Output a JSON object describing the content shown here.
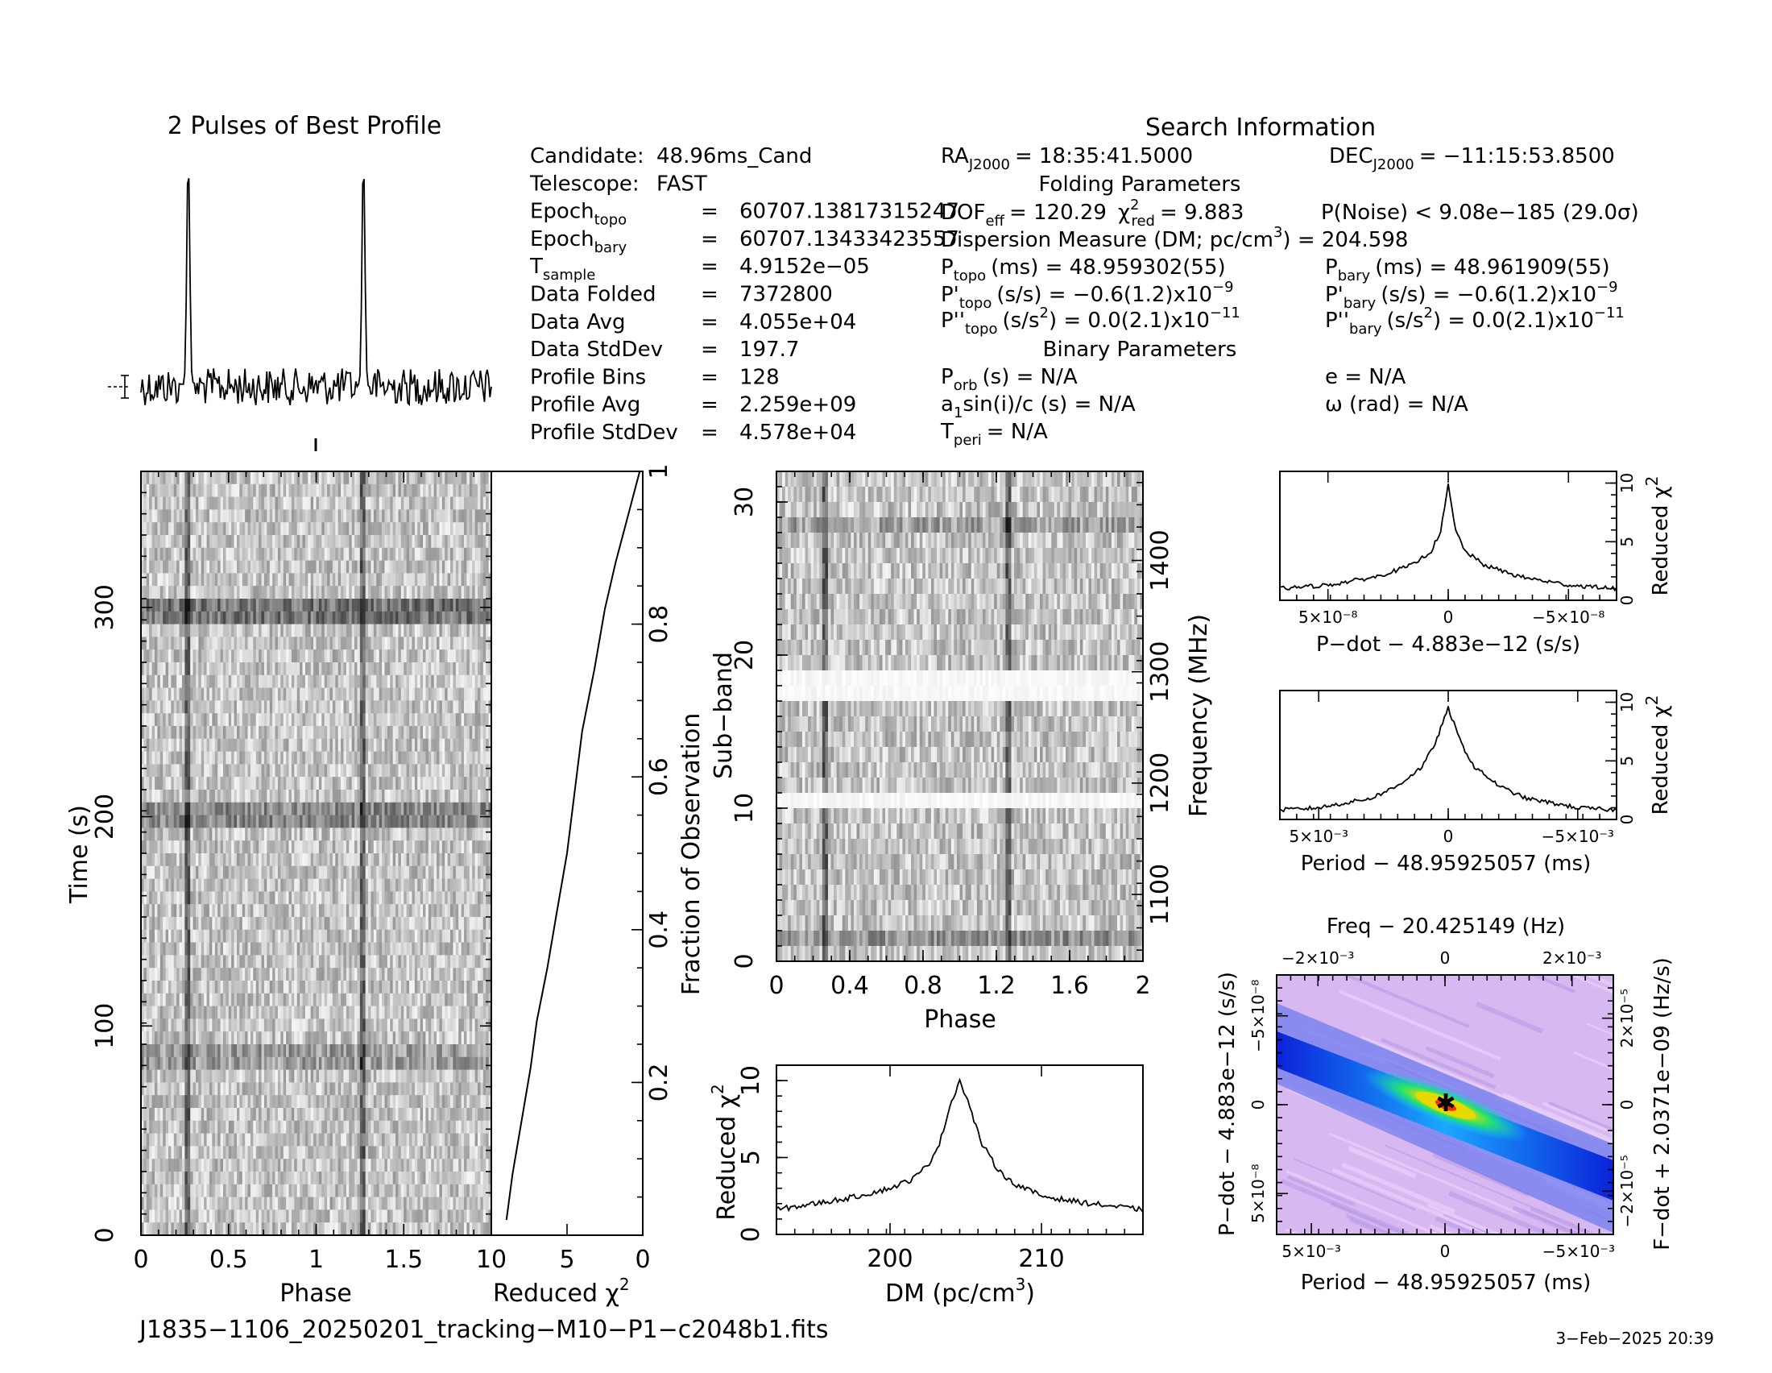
{
  "title_profile": "2 Pulses of Best Profile",
  "search_info_title": "Search Information",
  "info_col1": [
    {
      "label": "Candidate:",
      "value": "48.96ms_Cand"
    },
    {
      "label": "Telescope:",
      "value": "FAST"
    },
    {
      "label": "Epoch",
      "sub": "topo",
      "eq": "=",
      "value": "60707.13817315247"
    },
    {
      "label": "Epoch",
      "sub": "bary",
      "eq": "=",
      "value": "60707.13433423557"
    },
    {
      "label": "T",
      "sub": "sample",
      "eq": "=",
      "value": "4.9152e−05"
    },
    {
      "label": "Data Folded",
      "eq": "=",
      "value": "7372800"
    },
    {
      "label": "Data Avg",
      "eq": "=",
      "value": "4.055e+04"
    },
    {
      "label": "Data StdDev",
      "eq": "=",
      "value": "197.7"
    },
    {
      "label": "Profile Bins",
      "eq": "=",
      "value": "128"
    },
    {
      "label": "Profile Avg",
      "eq": "=",
      "value": "2.259e+09"
    },
    {
      "label": "Profile StdDev",
      "eq": "=",
      "value": "4.578e+04"
    }
  ],
  "ra": {
    "label": "RA",
    "sub": "J2000",
    "value": "= 18:35:41.5000"
  },
  "dec": {
    "label": "DEC",
    "sub": "J2000",
    "value": "= −11:15:53.8500"
  },
  "folding_title": "Folding Parameters",
  "dof": {
    "label": "DOF",
    "sub": "eff",
    "value": "= 120.29",
    "chi_label": "χ",
    "chi_sup": "2",
    "chi_sub": "red",
    "chi_value": "= 9.883"
  },
  "pnoise": "P(Noise) < 9.08e−185  (29.0σ)",
  "dm_line": {
    "prefix": "Dispersion Measure (DM; pc/cm",
    "sup": "3",
    "suffix": ") = 204.598"
  },
  "p_topo": {
    "label": "P",
    "sub": "topo",
    "value": "(ms) =  48.959302(55)"
  },
  "p_bary": {
    "label": "P",
    "sub": "bary",
    "value": "(ms) =  48.961909(55)"
  },
  "pd_topo": {
    "label": "P'",
    "sub": "topo",
    "value": "(s/s) = −0.6(1.2)x10",
    "exp": "−9"
  },
  "pd_bary": {
    "label": "P'",
    "sub": "bary",
    "value": "(s/s) = −0.6(1.2)x10",
    "exp": "−9"
  },
  "pdd_topo": {
    "label": "P''",
    "sub": "topo",
    "pre": "(s/s",
    "sup": "2",
    "value": ") = 0.0(2.1)x10",
    "exp": "−11"
  },
  "pdd_bary": {
    "label": "P''",
    "sub": "bary",
    "pre": "(s/s",
    "sup": "2",
    "value": ") = 0.0(2.1)x10",
    "exp": "−11"
  },
  "binary_title": "Binary Parameters",
  "porb": {
    "label": "P",
    "sub": "orb",
    "value": "(s) = N/A"
  },
  "asini": {
    "label": "a",
    "sub": "1",
    "value": "sin(i)/c (s) = N/A"
  },
  "tperi": {
    "label": "T",
    "sub": "peri",
    "value": "= N/A"
  },
  "ecc": "e = N/A",
  "omega": "ω (rad) = N/A",
  "filename": "J1835−1106_20250201_tracking−M10−P1−c2048b1.fits",
  "date": "3−Feb−2025 20:39",
  "chart_data": [
    {
      "type": "line",
      "name": "best-profile",
      "title": "2 Pulses of Best Profile",
      "x_label": "",
      "phase_range": [
        0,
        2
      ],
      "peaks": [
        {
          "phase": 0.27,
          "relative_height": 1.0
        },
        {
          "phase": 1.27,
          "relative_height": 1.0
        }
      ],
      "note_values": "noise baseline with two sharp pulses"
    },
    {
      "type": "heatmap",
      "name": "time-phase",
      "xlabel": "Phase",
      "ylabel": "Time (s)",
      "xlim": [
        0,
        2
      ],
      "ylim": [
        0,
        365
      ],
      "xticks": [
        "0",
        "0.5",
        "1",
        "1.5"
      ],
      "yticks": [
        "0",
        "100",
        "200",
        "300"
      ],
      "pulse_phases": [
        0.27,
        1.27
      ]
    },
    {
      "type": "line",
      "name": "time-chi2",
      "xlabel": "Reduced χ",
      "xlabel_sup": "2",
      "ylabel": "Fraction of Observation",
      "xlim": [
        10,
        0
      ],
      "ylim": [
        0,
        1
      ],
      "xticks": [
        "10",
        "5",
        "0"
      ],
      "yticks": [
        "0.2",
        "0.4",
        "0.6",
        "0.8",
        "1"
      ],
      "x": [
        1.0,
        1.4,
        2.0,
        2.6,
        3.0,
        3.7,
        4.3,
        5.0,
        5.5,
        6.0,
        6.8,
        7.5,
        8.2,
        9.0,
        9.8
      ],
      "y": [
        0.02,
        0.08,
        0.15,
        0.22,
        0.28,
        0.35,
        0.42,
        0.5,
        0.58,
        0.66,
        0.74,
        0.82,
        0.88,
        0.94,
        1.0
      ]
    },
    {
      "type": "heatmap",
      "name": "subband-phase",
      "xlabel": "Phase",
      "ylabel": "Sub−band",
      "y2label": "Frequency (MHz)",
      "xlim": [
        0,
        2
      ],
      "ylim": [
        0,
        32
      ],
      "xticks": [
        "0",
        "0.4",
        "0.8",
        "1.2",
        "1.6",
        "2"
      ],
      "yticks": [
        "0",
        "10",
        "20",
        "30"
      ],
      "y2ticks": [
        "1100",
        "1200",
        "1300",
        "1400"
      ],
      "zapped_subbands": [
        10,
        17,
        18
      ]
    },
    {
      "type": "line",
      "name": "dm-chi2",
      "xlabel": "DM (pc/cm",
      "xlabel_sup": "3",
      "xlabel_end": ")",
      "ylabel": "Reduced χ",
      "ylabel_sup": "2",
      "xlim": [
        192.5,
        216.7
      ],
      "ylim": [
        0,
        11
      ],
      "xticks": [
        "200",
        "210"
      ],
      "yticks": [
        "0",
        "5",
        "10"
      ],
      "x": [
        192.5,
        195,
        197.5,
        200,
        201.5,
        202.5,
        203.3,
        204,
        204.6,
        205.2,
        206,
        207,
        208,
        210,
        212.5,
        215,
        216.7
      ],
      "y": [
        1.6,
        2.0,
        2.4,
        3.0,
        3.6,
        4.5,
        6.0,
        8.5,
        10.0,
        8.5,
        6.0,
        4.4,
        3.4,
        2.5,
        2.1,
        1.8,
        1.6
      ]
    },
    {
      "type": "line",
      "name": "pdot-chi2",
      "xlabel": "P−dot − 4.883e−12 (s/s)",
      "ylabel": "Reduced χ",
      "ylabel_sup": "2",
      "xlim": [
        7e-08,
        -7e-08
      ],
      "ylim": [
        0,
        11
      ],
      "xticks": [
        "5×10⁻⁸",
        "0",
        "−5×10⁻⁸"
      ],
      "yticks": [
        "0",
        "5",
        "10"
      ],
      "x": [
        7e-08,
        5e-08,
        3e-08,
        1.5e-08,
        7e-09,
        3e-09,
        0,
        -3e-09,
        -7e-09,
        -1.5e-08,
        -3e-08,
        -5e-08,
        -7e-08
      ],
      "y": [
        1.0,
        1.3,
        2.0,
        3.0,
        4.2,
        6.0,
        9.8,
        6.0,
        4.2,
        3.0,
        2.0,
        1.3,
        1.0
      ]
    },
    {
      "type": "line",
      "name": "period-chi2",
      "xlabel": "Period − 48.95925057 (ms)",
      "ylabel": "Reduced χ",
      "ylabel_sup": "2",
      "xlim": [
        0.0065,
        -0.0065
      ],
      "ylim": [
        0,
        11
      ],
      "xticks": [
        "5×10⁻³",
        "0",
        "−5×10⁻³"
      ],
      "yticks": [
        "0",
        "5",
        "10"
      ],
      "x": [
        0.0065,
        0.005,
        0.003,
        0.002,
        0.001,
        0.0005,
        0,
        -0.0005,
        -0.001,
        -0.002,
        -0.003,
        -0.005,
        -0.0065
      ],
      "y": [
        0.8,
        1.0,
        1.8,
        2.8,
        4.5,
        6.5,
        9.5,
        6.5,
        4.5,
        2.8,
        1.8,
        1.0,
        0.8
      ]
    },
    {
      "type": "heatmap",
      "name": "period-pdot",
      "title": "Freq − 20.425149 (Hz)",
      "xlabel": "Period − 48.95925057 (ms)",
      "ylabel": "P−dot − 4.883e−12 (s/s)",
      "y2label": "F−dot + 2.0371e−09 (Hz/s)",
      "xticks": [
        "5×10⁻³",
        "0",
        "−5×10⁻³"
      ],
      "x2ticks": [
        "−2×10⁻³",
        "0",
        "2×10⁻³"
      ],
      "yticks": [
        "−5×10⁻⁸",
        "0",
        "5×10⁻⁸"
      ],
      "y2ticks": [
        "2×10⁻⁵",
        "0",
        "−2×10⁻⁵"
      ],
      "best_point": {
        "x": 0,
        "y": 0
      }
    }
  ]
}
